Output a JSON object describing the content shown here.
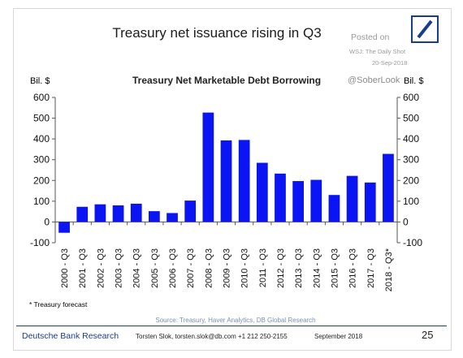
{
  "header": {
    "title": "Treasury net issuance rising in Q3",
    "posted_on": "Posted on",
    "posted_source": "WSJ: The Daily Shot",
    "posted_date": "20-Sep-2018",
    "handle": "@SoberLook",
    "logo": "deutsche-bank-logo"
  },
  "chart_data": {
    "type": "bar",
    "title": "Treasury Net Marketable Debt Borrowing",
    "ylabel_left": "Bil. $",
    "ylabel_right": "Bil. $",
    "ylim": [
      -100,
      600
    ],
    "yticks": [
      -100,
      0,
      100,
      200,
      300,
      400,
      500,
      600
    ],
    "ytick_labels": [
      "-100",
      "0",
      "100",
      "200",
      "300",
      "400",
      "500",
      "600"
    ],
    "categories": [
      "2000 - Q3",
      "2001 - Q3",
      "2002 - Q3",
      "2003 - Q3",
      "2004 - Q3",
      "2005 - Q3",
      "2006 - Q3",
      "2007 - Q3",
      "2008 - Q3",
      "2009 - Q3",
      "2010 - Q3",
      "2011 - Q3",
      "2012 - Q3",
      "2013 - Q3",
      "2014 - Q3",
      "2015 - Q3",
      "2016 - Q3",
      "2017 - Q3",
      "2018 - Q3*"
    ],
    "values": [
      -52,
      73,
      85,
      80,
      88,
      52,
      43,
      103,
      527,
      393,
      395,
      285,
      233,
      197,
      203,
      130,
      222,
      190,
      328
    ],
    "bar_color": "#0b14f2",
    "grid": false
  },
  "footnote": "* Treasury forecast",
  "source": "Source: Treasury, Haver Analytics, DB Global Research",
  "footer": {
    "brand": "Deutsche Bank Research",
    "contact": "Torsten Slok, torsten.slok@db.com  +1 212 250-2155",
    "date": "September 2018",
    "page": "25"
  }
}
